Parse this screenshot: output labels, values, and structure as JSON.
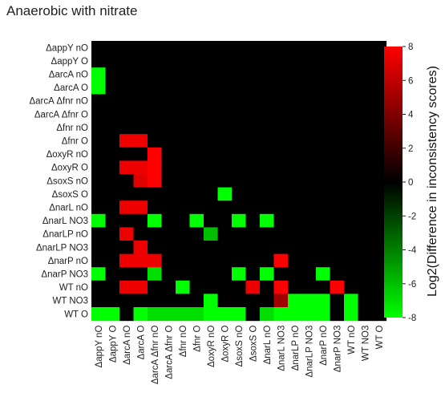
{
  "chart_data": {
    "type": "heatmap",
    "title": "Anaerobic with nitrate",
    "colorbar_label": "Log2(Difference in inconsistency scores)",
    "colorbar_ticks": [
      8,
      6,
      4,
      2,
      0,
      -2,
      -4,
      -6,
      -8
    ],
    "colorbar_range": [
      -8,
      8
    ],
    "colorscale": {
      "low": "#00ff00",
      "mid": "#000000",
      "high": "#ff0000"
    },
    "rows": [
      "ΔappY nO",
      "ΔappY O",
      "ΔarcA nO",
      "ΔarcA O",
      "ΔarcA Δfnr nO",
      "ΔarcA Δfnr O",
      "Δfnr nO",
      "Δfnr O",
      "ΔoxyR nO",
      "ΔoxyR O",
      "ΔsoxS nO",
      "ΔsoxS O",
      "ΔnarL nO",
      "ΔnarL NO3",
      "ΔnarLP nO",
      "ΔnarLP NO3",
      "ΔnarP nO",
      "ΔnarP NO3",
      "WT nO",
      "WT NO3",
      "WT O"
    ],
    "columns": [
      "ΔappY nO",
      "ΔappY O",
      "ΔarcA nO",
      "ΔarcA O",
      "ΔarcA Δfnr nO",
      "ΔarcA Δfnr O",
      "Δfnr nO",
      "Δfnr O",
      "ΔoxyR nO",
      "ΔoxyR O",
      "ΔsoxS nO",
      "ΔsoxS O",
      "ΔnarL nO",
      "ΔnarL NO3",
      "ΔnarLP nO",
      "ΔnarLP NO3",
      "ΔnarP nO",
      "ΔnarP NO3",
      "WT nO",
      "WT NO3",
      "WT O"
    ],
    "values": [
      [
        0,
        0,
        0,
        0,
        0,
        0,
        0,
        0,
        0,
        0,
        0,
        0,
        0,
        0,
        0,
        0,
        0,
        0,
        0,
        0,
        0
      ],
      [
        0,
        0,
        0,
        0,
        0,
        0,
        0,
        0,
        0,
        0,
        0,
        0,
        0,
        0,
        0,
        0,
        0,
        0,
        0,
        0,
        0
      ],
      [
        -8,
        0,
        0,
        0,
        0,
        0,
        0,
        0,
        0,
        0,
        0,
        0,
        0,
        0,
        0,
        0,
        0,
        0,
        0,
        0,
        0
      ],
      [
        -8,
        0,
        0,
        0,
        0,
        0,
        0,
        0,
        0,
        0,
        0,
        0,
        0,
        0,
        0,
        0,
        0,
        0,
        0,
        0,
        0
      ],
      [
        0,
        0,
        0,
        0,
        0,
        0,
        0,
        0,
        0,
        0,
        0,
        0,
        0,
        0,
        0,
        0,
        0,
        0,
        0,
        0,
        0
      ],
      [
        0,
        0,
        0,
        0,
        0,
        0,
        0,
        0,
        0,
        0,
        0,
        0,
        0,
        0,
        0,
        0,
        0,
        0,
        0,
        0,
        0
      ],
      [
        0,
        0,
        0,
        0,
        0,
        0,
        0,
        0,
        0,
        0,
        0,
        0,
        0,
        0,
        0,
        0,
        0,
        0,
        0,
        0,
        0
      ],
      [
        0,
        0,
        7.5,
        7.5,
        0,
        0,
        0,
        0,
        0,
        0,
        0,
        0,
        0,
        0,
        0,
        0,
        0,
        0,
        0,
        0,
        0
      ],
      [
        0,
        0,
        0,
        0,
        8,
        0,
        0,
        0,
        0,
        0,
        0,
        0,
        0,
        0,
        0,
        0,
        0,
        0,
        0,
        0,
        0
      ],
      [
        0,
        0,
        7.5,
        7.5,
        8,
        0,
        0,
        0,
        0,
        0,
        0,
        0,
        0,
        0,
        0,
        0,
        0,
        0,
        0,
        0,
        0
      ],
      [
        0,
        0,
        0,
        7,
        8,
        0,
        0,
        0,
        0,
        0,
        0,
        0,
        0,
        0,
        0,
        0,
        0,
        0,
        0,
        0,
        0
      ],
      [
        0,
        0,
        0,
        0,
        0,
        0,
        0,
        0,
        0,
        -8,
        0,
        0,
        0,
        0,
        0,
        0,
        0,
        0,
        0,
        0,
        0
      ],
      [
        0,
        0,
        7.5,
        7.5,
        0,
        0,
        0,
        0,
        0,
        0,
        0,
        0,
        0,
        0,
        0,
        0,
        0,
        0,
        0,
        0,
        0
      ],
      [
        -8,
        0,
        0,
        0,
        -8,
        0,
        0,
        -8,
        0,
        0,
        -8,
        0,
        -8,
        0,
        0,
        0,
        0,
        0,
        0,
        0,
        0
      ],
      [
        0,
        0,
        7.5,
        0,
        0,
        0,
        0,
        0,
        -6,
        0,
        0,
        0,
        0,
        0,
        0,
        0,
        0,
        0,
        0,
        0,
        0
      ],
      [
        0,
        0,
        0,
        7.5,
        0,
        0,
        0,
        0,
        0,
        0,
        0,
        0,
        0,
        0,
        0,
        0,
        0,
        0,
        0,
        0,
        0
      ],
      [
        0,
        0,
        7.5,
        7.5,
        7.5,
        0,
        0,
        0,
        0,
        0,
        0,
        0,
        0,
        8,
        0,
        0,
        0,
        0,
        0,
        0,
        0
      ],
      [
        -8,
        0,
        0,
        0,
        -7,
        0,
        0,
        0,
        0,
        0,
        -8,
        0,
        -8,
        0,
        0,
        0,
        -8,
        0,
        0,
        0,
        0
      ],
      [
        0,
        0,
        7.5,
        7.5,
        0,
        0,
        -8,
        0,
        0,
        0,
        0,
        7.5,
        0,
        8,
        0,
        0,
        0,
        8,
        0,
        0,
        0
      ],
      [
        0,
        0,
        0,
        0,
        0,
        0,
        0,
        0,
        -8,
        0,
        0,
        0,
        0,
        5,
        -8,
        -8,
        -8,
        0,
        -8,
        0,
        0
      ],
      [
        -8,
        -8,
        0,
        -8,
        -7,
        -7,
        -7,
        -7,
        -8,
        -8,
        -8,
        0,
        -7,
        -8,
        -8,
        -8,
        -8,
        0,
        -8,
        0,
        0
      ]
    ]
  }
}
